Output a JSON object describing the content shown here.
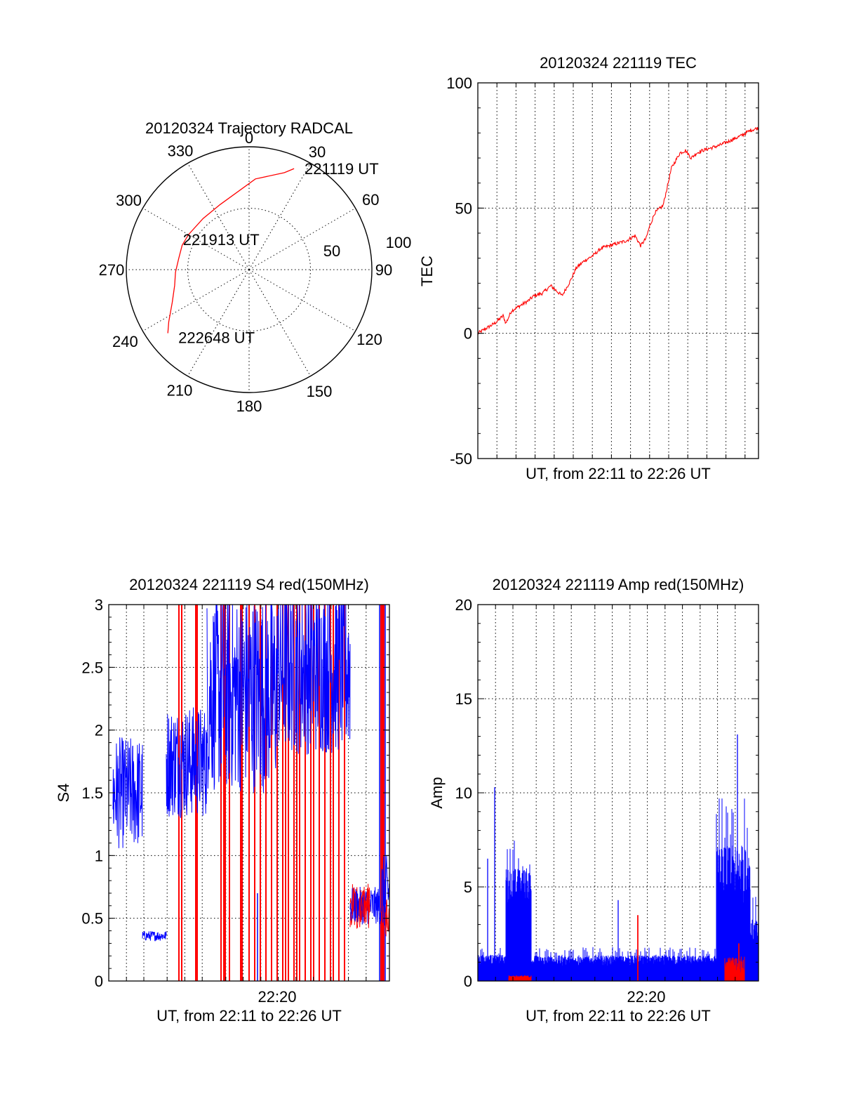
{
  "chart_data": [
    {
      "id": "polar",
      "type": "polar",
      "title": "20120324 Trajectory RADCAL",
      "azimuth_labels": [
        "0",
        "30",
        "60",
        "90",
        "120",
        "150",
        "180",
        "210",
        "240",
        "270",
        "300",
        "330"
      ],
      "azimuth_degrees": [
        0,
        30,
        60,
        90,
        120,
        150,
        180,
        210,
        240,
        270,
        300,
        330
      ],
      "radial_rings": [
        50,
        100
      ],
      "radial_labels": [
        "50",
        "100"
      ],
      "radial_max": 100,
      "trajectory": [
        {
          "az": 24,
          "r": 90
        },
        {
          "az": 20,
          "r": 84
        },
        {
          "az": 4,
          "r": 74
        },
        {
          "az": 336,
          "r": 58
        },
        {
          "az": 318,
          "r": 56
        },
        {
          "az": 300,
          "r": 57
        },
        {
          "az": 290,
          "r": 58
        },
        {
          "az": 279,
          "r": 58
        },
        {
          "az": 268,
          "r": 60
        },
        {
          "az": 258,
          "r": 62
        },
        {
          "az": 247,
          "r": 68
        },
        {
          "az": 237,
          "r": 78
        },
        {
          "az": 232,
          "r": 84
        }
      ],
      "trajectory_color": "#ff0000",
      "annotations": [
        {
          "text": "221119 UT",
          "az": 24,
          "r": 90
        },
        {
          "text": "221913 UT",
          "az": 336,
          "r": 27
        },
        {
          "text": "222648 UT",
          "az": 232,
          "r": 84
        }
      ]
    },
    {
      "id": "tec",
      "type": "line",
      "title": "20120324 221119 TEC",
      "ylabel": "TEC",
      "xlabel": "UT, from 22:11 to 22:26 UT",
      "ylim": [
        -50,
        100
      ],
      "yticks": [
        -50,
        0,
        50,
        100
      ],
      "xlim": [
        0,
        1
      ],
      "series": [
        {
          "name": "TEC",
          "color": "#ff0000",
          "x": [
            0,
            0.03,
            0.06,
            0.09,
            0.1,
            0.12,
            0.15,
            0.18,
            0.2,
            0.23,
            0.26,
            0.28,
            0.3,
            0.33,
            0.35,
            0.38,
            0.41,
            0.44,
            0.47,
            0.5,
            0.53,
            0.56,
            0.58,
            0.6,
            0.61,
            0.63,
            0.66,
            0.69,
            0.72,
            0.74,
            0.76,
            0.78,
            0.8,
            0.83,
            0.86,
            0.9,
            0.94,
            0.97,
            1.0
          ],
          "y": [
            0,
            2,
            4,
            7,
            4,
            9,
            11,
            13,
            15,
            16,
            19,
            17,
            15,
            21,
            26,
            29,
            31,
            34,
            35,
            36,
            37,
            39,
            35,
            38,
            42,
            48,
            51,
            66,
            72,
            73,
            70,
            72,
            73,
            74,
            75,
            77,
            79,
            81,
            82
          ]
        }
      ]
    },
    {
      "id": "s4",
      "type": "line",
      "title": "20120324 221119 S4 red(150MHz)",
      "ylabel": "S4",
      "xlabel": "UT, from 22:11 to 22:26 UT",
      "xtick_labels": [
        "22:20"
      ],
      "xtick_positions": [
        0.6
      ],
      "ylim": [
        0,
        3
      ],
      "yticks": [
        0,
        0.5,
        1,
        1.5,
        2,
        2.5,
        3
      ],
      "yticklabels": [
        "0",
        "0.5",
        "1",
        "1.5",
        "2",
        "2.5",
        "3"
      ],
      "xlim": [
        0,
        1
      ],
      "series": [
        {
          "name": "S4 blue",
          "color": "#0000ff",
          "segments": [
            {
              "x0": 0.015,
              "x1": 0.12,
              "mean": 1.5,
              "amp": 0.45
            },
            {
              "x0": 0.12,
              "x1": 0.205,
              "mean": 0.36,
              "amp": 0.04
            },
            {
              "x0": 0.205,
              "x1": 0.35,
              "mean": 1.75,
              "amp": 0.45
            },
            {
              "x0": 0.35,
              "x1": 0.6,
              "mean": 2.3,
              "amp": 0.8
            },
            {
              "x0": 0.6,
              "x1": 0.86,
              "mean": 2.5,
              "amp": 0.7
            },
            {
              "x0": 0.86,
              "x1": 0.97,
              "mean": 0.6,
              "amp": 0.15
            },
            {
              "x0": 0.97,
              "x1": 1.0,
              "mean": 0.7,
              "amp": 0.3
            }
          ],
          "spikes": [
            {
              "x": 0.53,
              "y": 0.7
            },
            {
              "x": 0.965,
              "y": 3.0
            },
            {
              "x": 0.985,
              "y": 3.0
            }
          ]
        },
        {
          "name": "S4 red",
          "color": "#ff0000",
          "vertical_lines": [
            0.25,
            0.26,
            0.31,
            0.315,
            0.4,
            0.41,
            0.415,
            0.43,
            0.47,
            0.475,
            0.5,
            0.52,
            0.54,
            0.56,
            0.58,
            0.6,
            0.62,
            0.63,
            0.64,
            0.66,
            0.67,
            0.68,
            0.7,
            0.72,
            0.73,
            0.75,
            0.77,
            0.79,
            0.8,
            0.82,
            0.84,
            0.97,
            0.975,
            0.98
          ],
          "segments": [
            {
              "x0": 0.86,
              "x1": 0.93,
              "mean": 0.6,
              "amp": 0.18
            },
            {
              "x0": 0.985,
              "x1": 1.0,
              "mean": 0.5,
              "amp": 0.15
            }
          ]
        }
      ]
    },
    {
      "id": "amp",
      "type": "line",
      "title": "20120324 221119 Amp red(150MHz)",
      "ylabel": "Amp",
      "xlabel": "UT, from 22:11 to 22:26 UT",
      "xtick_labels": [
        "22:20"
      ],
      "xtick_positions": [
        0.6
      ],
      "ylim": [
        0,
        20
      ],
      "yticks": [
        0,
        5,
        10,
        15,
        20
      ],
      "xlim": [
        0,
        1
      ],
      "series": [
        {
          "name": "Amp blue",
          "color": "#0000ff",
          "segments": [
            {
              "x0": 0.0,
              "x1": 0.1,
              "mean": 0.8,
              "amp": 1.0
            },
            {
              "x0": 0.1,
              "x1": 0.19,
              "mean": 3.5,
              "amp": 4.2
            },
            {
              "x0": 0.19,
              "x1": 0.85,
              "mean": 0.7,
              "amp": 1.1
            },
            {
              "x0": 0.85,
              "x1": 0.97,
              "mean": 3.0,
              "amp": 7.0
            },
            {
              "x0": 0.97,
              "x1": 1.0,
              "mean": 1.5,
              "amp": 3.0
            }
          ],
          "spikes": [
            {
              "x": 0.035,
              "y": 6.5
            },
            {
              "x": 0.06,
              "y": 10.3
            },
            {
              "x": 0.5,
              "y": 4.3
            },
            {
              "x": 0.925,
              "y": 13.1
            }
          ]
        },
        {
          "name": "Amp red",
          "color": "#ff0000",
          "segments": [
            {
              "x0": 0.11,
              "x1": 0.19,
              "mean": 0.15,
              "amp": 0.15
            },
            {
              "x0": 0.88,
              "x1": 0.95,
              "mean": 0.3,
              "amp": 1.0
            }
          ],
          "spikes": [
            {
              "x": 0.57,
              "y": 3.5
            },
            {
              "x": 0.93,
              "y": 2.0
            }
          ]
        }
      ]
    }
  ]
}
